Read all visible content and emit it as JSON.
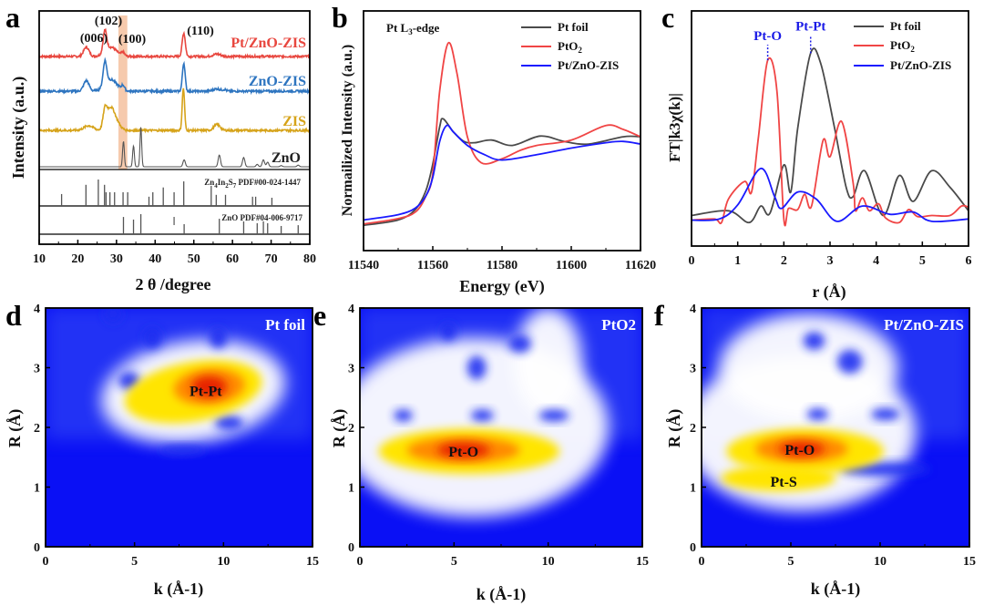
{
  "panels": {
    "a": {
      "letter": "a"
    },
    "b": {
      "letter": "b"
    },
    "c": {
      "letter": "c"
    },
    "d": {
      "letter": "d"
    },
    "e": {
      "letter": "e"
    },
    "f": {
      "letter": "f"
    }
  },
  "watermark": "大数跨境",
  "chart_data": [
    {
      "id": "a",
      "type": "line",
      "xlabel": "2 θ /degree",
      "ylabel": "Intensity (a.u.)",
      "xlim": [
        10,
        80
      ],
      "ylim": [
        0,
        100
      ],
      "xticks": [
        "10",
        "20",
        "30",
        "40",
        "50",
        "60",
        "70",
        "80"
      ],
      "highlight_band": [
        30.5,
        32.8
      ],
      "peak_labels": [
        "(006)",
        "(102)",
        "(100)",
        "(110)"
      ],
      "series": [
        {
          "name": "Pt/ZnO-ZIS",
          "color": "#e8473f",
          "baseline": 80.5,
          "peaks": [
            [
              22.2,
              4,
              0.7
            ],
            [
              27,
              9,
              0.45
            ],
            [
              28.5,
              4,
              1.5
            ],
            [
              31.7,
              1.5,
              0.4
            ],
            [
              47.4,
              10,
              0.4
            ],
            [
              56,
              1,
              1
            ]
          ]
        },
        {
          "name": "ZnO-ZIS",
          "color": "#2e75c0",
          "baseline": 65.6,
          "peaks": [
            [
              22.2,
              4.5,
              0.7
            ],
            [
              27,
              10,
              0.45
            ],
            [
              28.5,
              5,
              1.6
            ],
            [
              31.7,
              2,
              0.4
            ],
            [
              47.4,
              12,
              0.35
            ],
            [
              56,
              1,
              1
            ],
            [
              58,
              0.6,
              0.4
            ]
          ]
        },
        {
          "name": "ZIS",
          "color": "#d6a31a",
          "baseline": 48.8,
          "peaks": [
            [
              22.8,
              2,
              1.2
            ],
            [
              27,
              7,
              0.5
            ],
            [
              28.4,
              9,
              1.0
            ],
            [
              30,
              3,
              1
            ],
            [
              47.3,
              18,
              0.3
            ],
            [
              56,
              2.5,
              0.8
            ]
          ]
        },
        {
          "name": "ZnO",
          "color": "#555555",
          "baseline": 33.2,
          "peaks": [
            [
              31.8,
              11,
              0.22
            ],
            [
              34.4,
              9,
              0.22
            ],
            [
              36.3,
              17,
              0.22
            ],
            [
              47.5,
              3,
              0.3
            ],
            [
              56.6,
              5,
              0.3
            ],
            [
              62.9,
              4,
              0.3
            ],
            [
              66.4,
              1,
              0.3
            ],
            [
              68,
              3,
              0.3
            ],
            [
              69.1,
              2,
              0.3
            ],
            [
              72.6,
              0.5,
              0.3
            ],
            [
              77,
              0.7,
              0.3
            ]
          ]
        }
      ],
      "references": [
        {
          "name": "Zn4In2S7 PDF#00-024-1447",
          "label_main": "Zn",
          "label_sub1": "4",
          "label_mid": "In",
          "label_sub2": "2",
          "label_s": "S",
          "label_sub3": "7",
          "label_tail": " PDF#00-024-1447",
          "lines": [
            [
              15.8,
              45
            ],
            [
              22.1,
              80
            ],
            [
              25.3,
              100
            ],
            [
              26.9,
              80
            ],
            [
              27.3,
              52
            ],
            [
              28.3,
              52
            ],
            [
              29.5,
              52
            ],
            [
              31.7,
              52
            ],
            [
              32.9,
              52
            ],
            [
              38.4,
              35
            ],
            [
              39.4,
              52
            ],
            [
              42.1,
              70
            ],
            [
              44.9,
              52
            ],
            [
              47.4,
              93
            ],
            [
              54.5,
              76
            ],
            [
              55.8,
              42
            ],
            [
              58.2,
              42
            ],
            [
              65.2,
              35
            ],
            [
              66.0,
              35
            ],
            [
              70.2,
              31
            ]
          ]
        },
        {
          "name": "ZnO PDF#04-006-9717",
          "lines": [
            [
              31.8,
              86
            ],
            [
              34.4,
              73
            ],
            [
              36.3,
              100
            ],
            [
              47.5,
              50
            ],
            [
              56.6,
              77
            ],
            [
              62.9,
              64
            ],
            [
              66.4,
              55
            ],
            [
              68.0,
              64
            ],
            [
              69.1,
              55
            ],
            [
              72.6,
              41
            ],
            [
              77.0,
              45
            ]
          ]
        }
      ]
    },
    {
      "id": "b",
      "type": "line",
      "title": "Pt L3-edge",
      "xlabel": "Energy (eV)",
      "ylabel": "Normailized Intensity (a.u.)",
      "xlim": [
        11540,
        11620
      ],
      "ylim": [
        0,
        1.8
      ],
      "xticks": [
        "11540",
        "11560",
        "11580",
        "11600",
        "11620"
      ],
      "series": [
        {
          "name": "Pt foil",
          "color": "#4a4a4a",
          "x": [
            11540,
            11550,
            11555,
            11558,
            11560,
            11562,
            11563,
            11566,
            11569,
            11572,
            11577,
            11583,
            11591,
            11598,
            11605,
            11615,
            11620
          ],
          "y": [
            0.19,
            0.23,
            0.31,
            0.45,
            0.65,
            0.93,
            0.99,
            0.89,
            0.82,
            0.81,
            0.83,
            0.79,
            0.86,
            0.82,
            0.8,
            0.855,
            0.855
          ]
        },
        {
          "name": "PtO2",
          "color": "#f04545",
          "x": [
            11540,
            11550,
            11555,
            11558,
            11560,
            11562,
            11564.5,
            11567,
            11570,
            11574,
            11580,
            11585,
            11590,
            11600,
            11610,
            11615,
            11620
          ],
          "y": [
            0.2,
            0.24,
            0.29,
            0.41,
            0.58,
            1.2,
            1.56,
            1.33,
            0.855,
            0.66,
            0.69,
            0.75,
            0.79,
            0.83,
            0.94,
            0.91,
            0.855
          ]
        },
        {
          "name": "Pt/ZnO-ZIS",
          "color": "#1a1aff",
          "x": [
            11540,
            11550,
            11555,
            11558,
            11560,
            11562,
            11564,
            11566,
            11570,
            11575,
            11580,
            11590,
            11600,
            11610,
            11615,
            11620
          ],
          "y": [
            0.23,
            0.27,
            0.32,
            0.41,
            0.55,
            0.82,
            0.94,
            0.89,
            0.79,
            0.72,
            0.68,
            0.72,
            0.77,
            0.81,
            0.82,
            0.8
          ]
        }
      ]
    },
    {
      "id": "c",
      "type": "line",
      "xlabel": "r (Å)",
      "ylabel": "FT|k3χ(k)|",
      "xlim": [
        0,
        6
      ],
      "ylim": [
        0,
        1
      ],
      "xticks": [
        "0",
        "1",
        "2",
        "3",
        "4",
        "5",
        "6"
      ],
      "annotations": [
        {
          "text": "Pt-O",
          "x": 1.65,
          "y": 0.79
        },
        {
          "text": "Pt-Pt",
          "x": 2.58,
          "y": 0.82
        }
      ],
      "series": [
        {
          "name": "Pt foil",
          "color": "#4a4a4a",
          "x": [
            0,
            0.8,
            1.25,
            1.5,
            1.7,
            2.0,
            2.15,
            2.3,
            2.58,
            2.8,
            3.1,
            3.35,
            3.5,
            3.75,
            4.15,
            4.5,
            4.8,
            5.2,
            5.6,
            6
          ],
          "y": [
            0.13,
            0.15,
            0.1,
            0.17,
            0.14,
            0.345,
            0.23,
            0.5,
            0.82,
            0.775,
            0.5,
            0.25,
            0.21,
            0.32,
            0.13,
            0.3,
            0.19,
            0.32,
            0.25,
            0.15
          ]
        },
        {
          "name": "PtO2",
          "color": "#f04545",
          "x": [
            0,
            0.5,
            0.65,
            0.8,
            1.15,
            1.3,
            1.45,
            1.65,
            1.85,
            2.0,
            2.1,
            2.3,
            2.45,
            2.6,
            2.85,
            3.0,
            3.25,
            3.5,
            3.55,
            3.7,
            3.85,
            4.05,
            4.2,
            4.5,
            4.7,
            4.9,
            5.2,
            5.6,
            5.85,
            6
          ],
          "y": [
            0.11,
            0.115,
            0.1,
            0.2,
            0.275,
            0.23,
            0.465,
            0.79,
            0.66,
            0.116,
            0.16,
            0.155,
            0.22,
            0.17,
            0.45,
            0.38,
            0.53,
            0.27,
            0.15,
            0.205,
            0.15,
            0.18,
            0.12,
            0.1,
            0.155,
            0.125,
            0.13,
            0.13,
            0.17,
            0.165
          ]
        },
        {
          "name": "Pt/ZnO-ZIS",
          "color": "#1a1aff",
          "x": [
            0,
            0.6,
            1.0,
            1.5,
            1.8,
            1.95,
            2.3,
            2.7,
            3.15,
            3.7,
            4.3,
            4.8,
            5.2,
            6
          ],
          "y": [
            0.11,
            0.115,
            0.175,
            0.33,
            0.21,
            0.16,
            0.23,
            0.2,
            0.105,
            0.17,
            0.135,
            0.145,
            0.105,
            0.115
          ]
        }
      ]
    },
    {
      "id": "d",
      "type": "heatmap",
      "title": "Pt foil",
      "xlabel": "k (Å-1)",
      "ylabel": "R (Å)",
      "xlim": [
        0,
        15
      ],
      "ylim": [
        0,
        4
      ],
      "xticks": [
        "0",
        "5",
        "10",
        "15"
      ],
      "yticks": [
        "0",
        "1",
        "2",
        "3",
        "4"
      ],
      "features": [
        {
          "label": "Pt-Pt",
          "k": 9,
          "R": 2.62
        }
      ]
    },
    {
      "id": "e",
      "type": "heatmap",
      "title": "PtO2",
      "xlabel": "k (Å-1)",
      "ylabel": "R (Å)",
      "xlim": [
        0,
        15
      ],
      "ylim": [
        0,
        4
      ],
      "xticks": [
        "0",
        "5",
        "10",
        "15"
      ],
      "yticks": [
        "0",
        "1",
        "2",
        "3",
        "4"
      ],
      "features": [
        {
          "label": "Pt-O",
          "k": 5.5,
          "R": 1.6
        }
      ]
    },
    {
      "id": "f",
      "type": "heatmap",
      "title": "Pt/ZnO-ZIS",
      "xlabel": "k (Å-1)",
      "ylabel": "R (Å)",
      "xlim": [
        0,
        15
      ],
      "ylim": [
        0,
        4
      ],
      "xticks": [
        "0",
        "5",
        "10",
        "15"
      ],
      "yticks": [
        "0",
        "1",
        "2",
        "3",
        "4"
      ],
      "features": [
        {
          "label": "Pt-O",
          "k": 5.5,
          "R": 1.63
        },
        {
          "label": "Pt-S",
          "k": 4.6,
          "R": 1.1
        }
      ]
    }
  ]
}
